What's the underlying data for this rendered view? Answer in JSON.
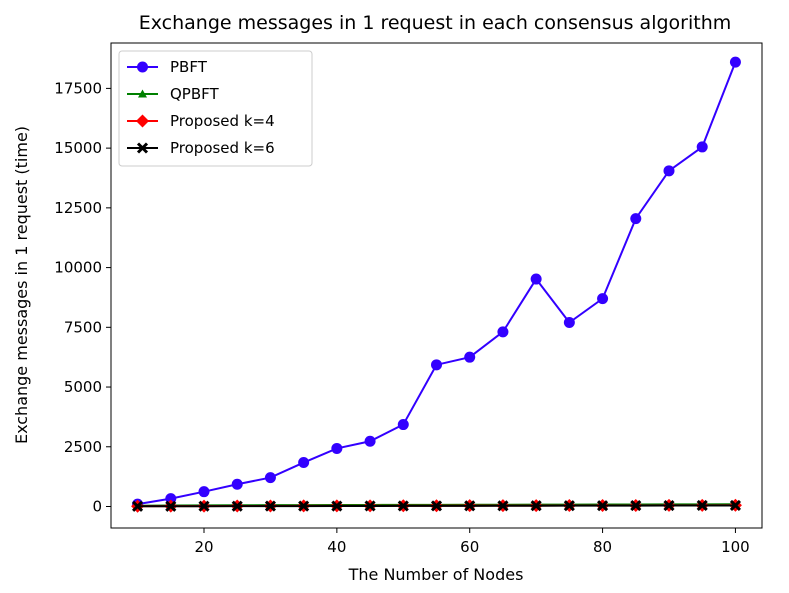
{
  "chart_data": {
    "type": "line",
    "title": "Exchange messages in 1 request in each consensus algorithm",
    "xlabel": "The Number of Nodes",
    "ylabel": "Exchange messages in 1 request (time)",
    "xlim": [
      6,
      104
    ],
    "ylim": [
      -900,
      19400
    ],
    "xticks": [
      20,
      40,
      60,
      80,
      100
    ],
    "yticks": [
      0,
      2500,
      5000,
      7500,
      10000,
      12500,
      15000,
      17500
    ],
    "grid": false,
    "legend_position": "top-left",
    "x": [
      10,
      15,
      20,
      25,
      30,
      35,
      40,
      45,
      50,
      55,
      60,
      65,
      70,
      75,
      80,
      85,
      90,
      95,
      100
    ],
    "series": [
      {
        "name": "PBFT",
        "color": "#3300ff",
        "marker": "circle",
        "values": [
          100,
          330,
          620,
          930,
          1210,
          1840,
          2430,
          2730,
          3430,
          5930,
          6250,
          7310,
          9520,
          7700,
          8700,
          12050,
          14050,
          15050,
          18600
        ]
      },
      {
        "name": "QPBFT",
        "color": "#008000",
        "marker": "triangle",
        "values": [
          30,
          40,
          45,
          50,
          55,
          60,
          62,
          65,
          68,
          70,
          72,
          75,
          77,
          80,
          82,
          85,
          88,
          90,
          92
        ]
      },
      {
        "name": "Proposed k=4",
        "color": "#ff0000",
        "marker": "diamond",
        "values": [
          12,
          15,
          18,
          20,
          22,
          24,
          26,
          28,
          30,
          32,
          34,
          36,
          38,
          40,
          42,
          44,
          46,
          48,
          50
        ]
      },
      {
        "name": "Proposed k=6",
        "color": "#000000",
        "marker": "x",
        "values": [
          8,
          10,
          12,
          14,
          16,
          18,
          20,
          22,
          24,
          26,
          28,
          30,
          32,
          34,
          36,
          38,
          40,
          42,
          44
        ]
      }
    ]
  }
}
